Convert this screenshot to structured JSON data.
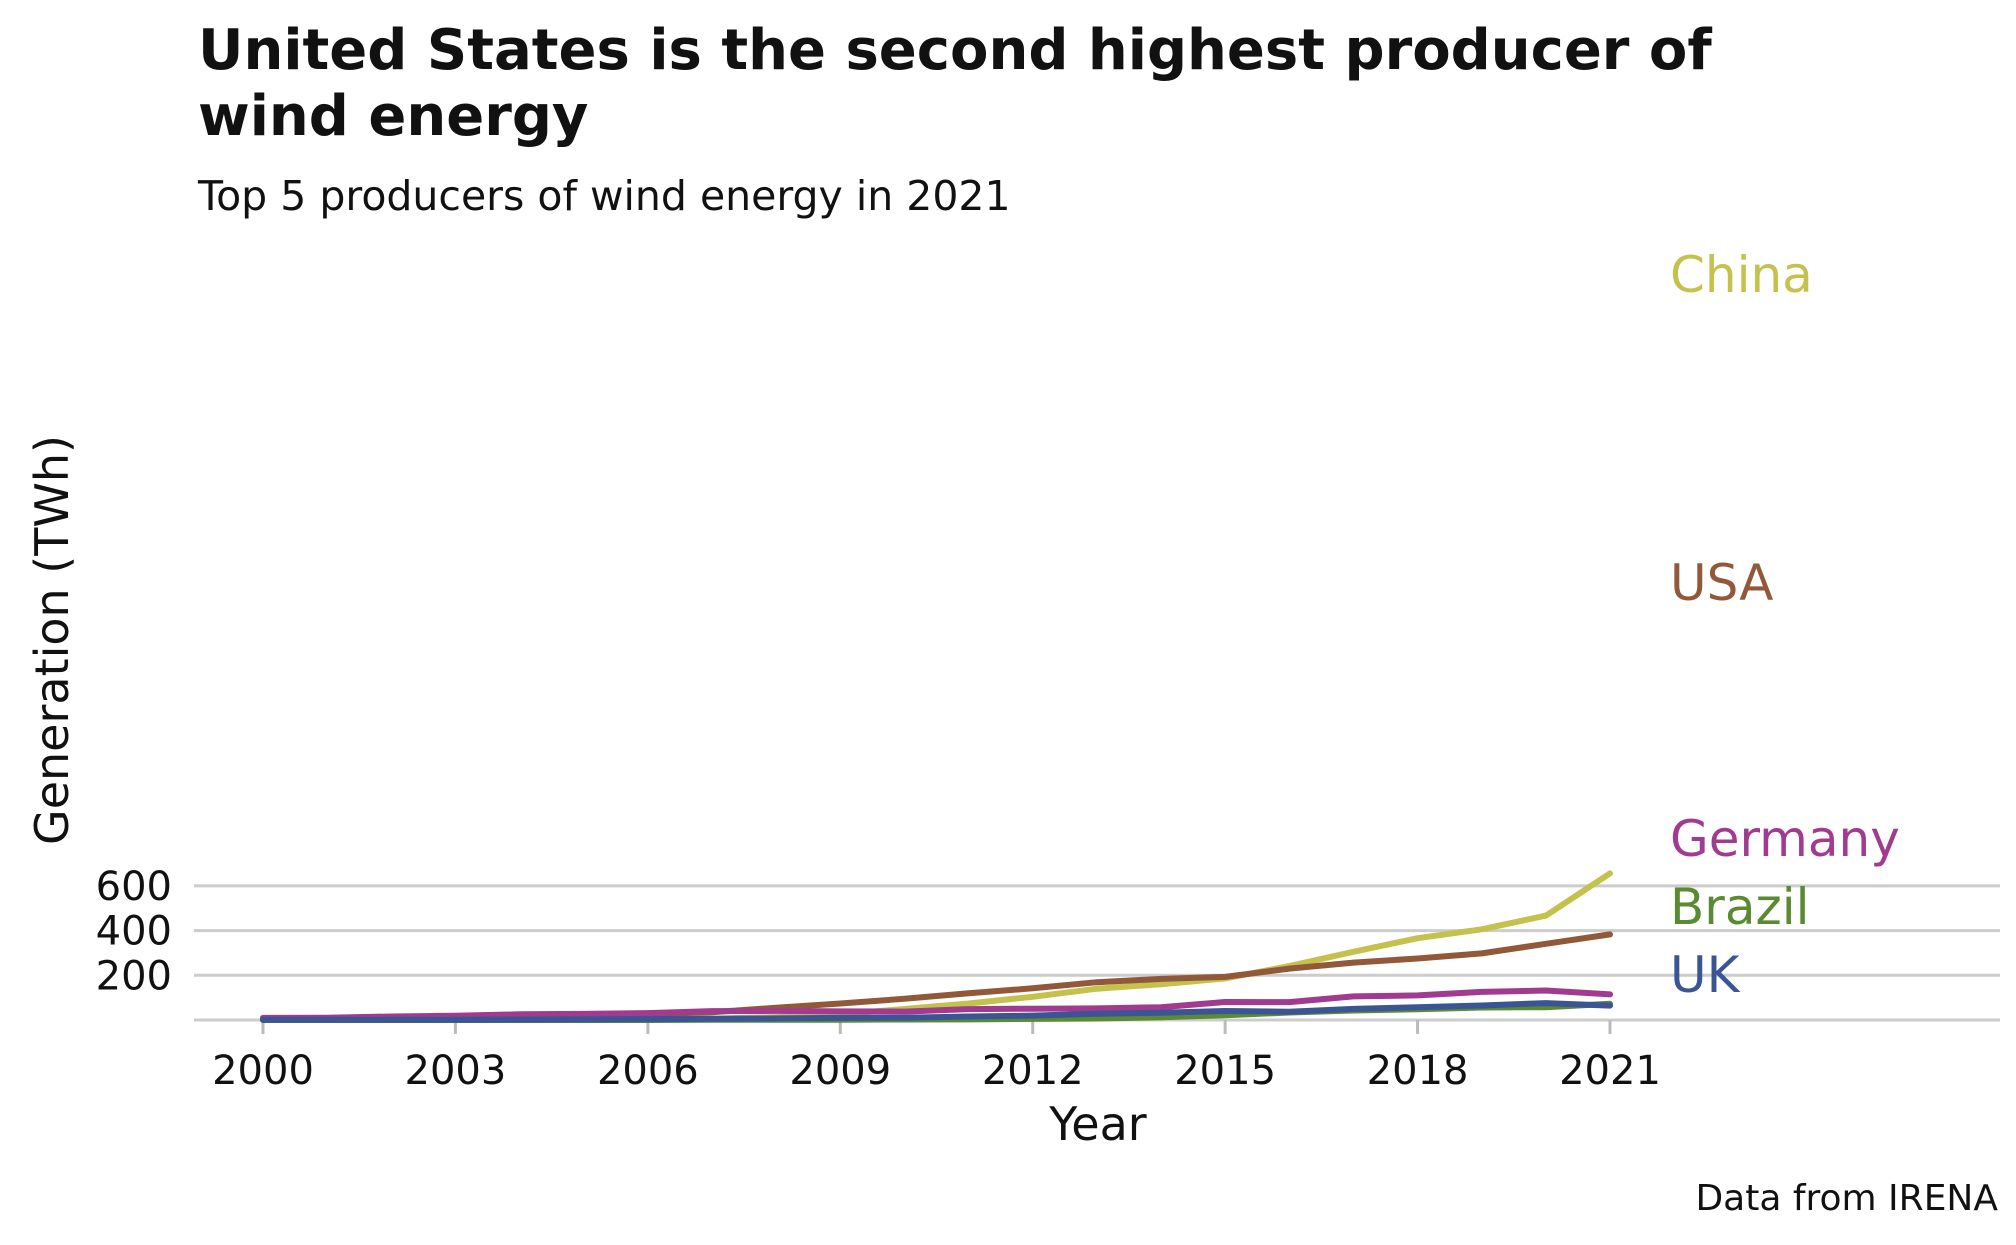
{
  "chart_data": {
    "type": "line",
    "title": "United States is the second highest producer of wind energy",
    "subtitle": "Top 5 producers of wind energy in 2021",
    "xlabel": "Year",
    "ylabel": "Generation (TWh)",
    "caption": "Data from IRENA",
    "xlim": [
      2000,
      2021
    ],
    "ylim": [
      0,
      650
    ],
    "x_ticks": [
      2000,
      2003,
      2006,
      2009,
      2012,
      2015,
      2018,
      2021
    ],
    "y_ticks": [
      200,
      400,
      600
    ],
    "grid": "horizontal",
    "legend": "direct labels at line ends",
    "x": [
      2000,
      2001,
      2002,
      2003,
      2004,
      2005,
      2006,
      2007,
      2008,
      2009,
      2010,
      2011,
      2012,
      2013,
      2014,
      2015,
      2016,
      2017,
      2018,
      2019,
      2020,
      2021
    ],
    "series": [
      {
        "name": "China",
        "color": "#c4c24c",
        "values": [
          0.6,
          0.7,
          0.9,
          1,
          1.3,
          1.9,
          3.7,
          5.7,
          13,
          26,
          49,
          74,
          104,
          140,
          160,
          186,
          241,
          305,
          366,
          406,
          467,
          656
        ]
      },
      {
        "name": "USA",
        "color": "#91593a",
        "values": [
          5.6,
          6.7,
          10,
          11,
          14,
          17.8,
          26.6,
          34.5,
          55,
          74,
          95,
          120,
          142,
          169,
          184,
          193,
          230,
          257,
          275,
          298,
          341,
          383
        ]
      },
      {
        "name": "Germany",
        "color": "#a03b8f",
        "values": [
          9.5,
          10.5,
          15.8,
          18.7,
          25.5,
          27.2,
          30.7,
          39.7,
          40.6,
          38.6,
          37.8,
          48.9,
          50.7,
          51.7,
          57.4,
          80.6,
          79.9,
          105.7,
          109.9,
          125.9,
          132.1,
          114.6
        ]
      },
      {
        "name": "Brazil",
        "color": "#5a8a32",
        "values": [
          0,
          0,
          0,
          0,
          0.1,
          0.1,
          0.2,
          0.7,
          1.2,
          1.2,
          2.2,
          2.7,
          5.1,
          6.6,
          12.2,
          21.6,
          33.5,
          42.4,
          48.5,
          56,
          57.1,
          72.3
        ]
      },
      {
        "name": "UK",
        "color": "#3b5494",
        "values": [
          0.9,
          1,
          1.3,
          1.3,
          1.9,
          2.9,
          4.2,
          5.3,
          7.1,
          9.3,
          10.2,
          15.5,
          19.6,
          28.4,
          32,
          40.3,
          37.3,
          49.6,
          57.1,
          64.7,
          75.4,
          64.5
        ]
      }
    ]
  }
}
